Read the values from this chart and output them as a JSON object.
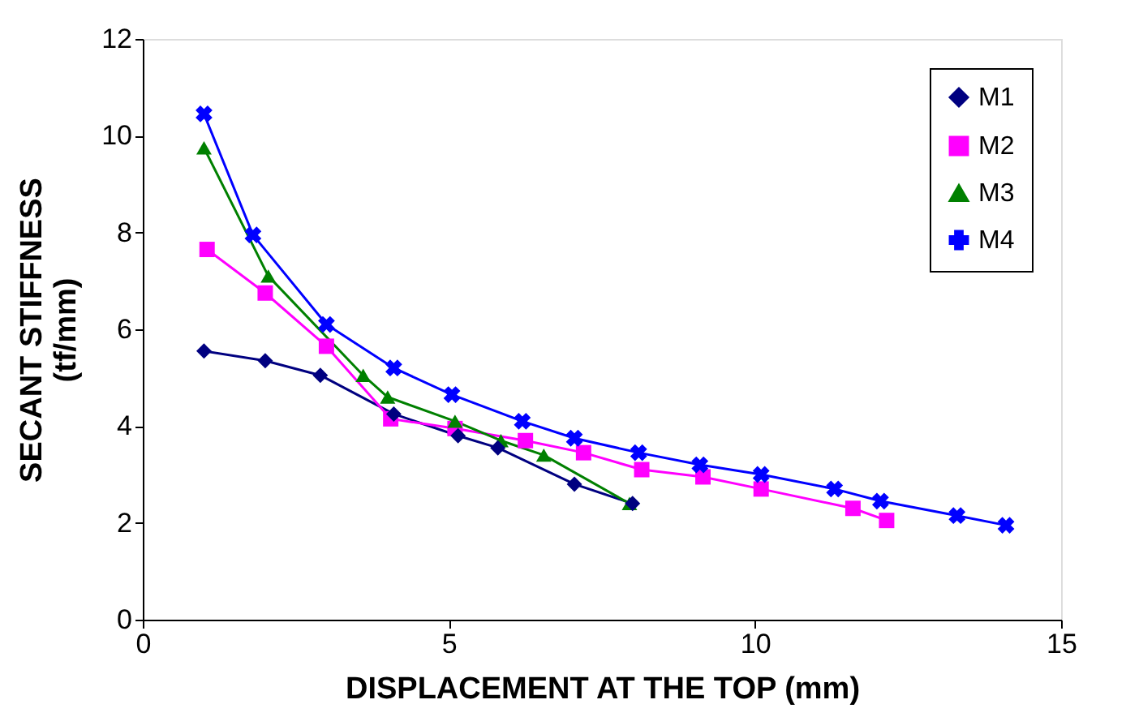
{
  "chart_data": {
    "type": "line",
    "xlabel": "DISPLACEMENT AT THE TOP (mm)",
    "ylabel": "SECANT STIFFNESS\n(tf/mm)",
    "xlim": [
      0,
      15
    ],
    "xticks": [
      0,
      5,
      10,
      15
    ],
    "ylim": [
      0,
      12
    ],
    "yticks": [
      0,
      2,
      4,
      6,
      8,
      10,
      12
    ],
    "grid": false,
    "legend": "top right",
    "line_style": "solid",
    "series": [
      {
        "name": "M1",
        "color": "#000080",
        "marker": "diamond",
        "x": [
          1.0,
          2.0,
          2.9,
          4.1,
          5.15,
          5.8,
          7.05,
          8.0
        ],
        "values": [
          5.55,
          5.35,
          5.05,
          4.25,
          3.8,
          3.55,
          2.8,
          2.4
        ]
      },
      {
        "name": "M2",
        "color": "#ff00ff",
        "marker": "square",
        "x": [
          1.05,
          2.0,
          3.0,
          4.05,
          5.1,
          6.25,
          7.2,
          8.15,
          9.15,
          10.1,
          11.6,
          12.15
        ],
        "values": [
          7.65,
          6.75,
          5.65,
          4.15,
          3.95,
          3.7,
          3.45,
          3.1,
          2.95,
          2.7,
          2.3,
          2.05
        ]
      },
      {
        "name": "M3",
        "color": "#008000",
        "marker": "triangle",
        "x": [
          1.0,
          2.05,
          3.6,
          4.0,
          5.1,
          5.85,
          6.55,
          7.95
        ],
        "values": [
          9.75,
          7.1,
          5.05,
          4.6,
          4.1,
          3.7,
          3.4,
          2.4
        ]
      },
      {
        "name": "M4",
        "color": "#0000ff",
        "marker": "cross",
        "x": [
          1.0,
          1.8,
          3.0,
          4.1,
          5.05,
          6.2,
          7.05,
          8.1,
          9.1,
          10.1,
          11.3,
          12.05,
          13.3,
          14.1
        ],
        "values": [
          10.45,
          7.95,
          6.1,
          5.2,
          4.65,
          4.1,
          3.75,
          3.45,
          3.2,
          3.0,
          2.7,
          2.45,
          2.15,
          1.95
        ]
      }
    ]
  }
}
